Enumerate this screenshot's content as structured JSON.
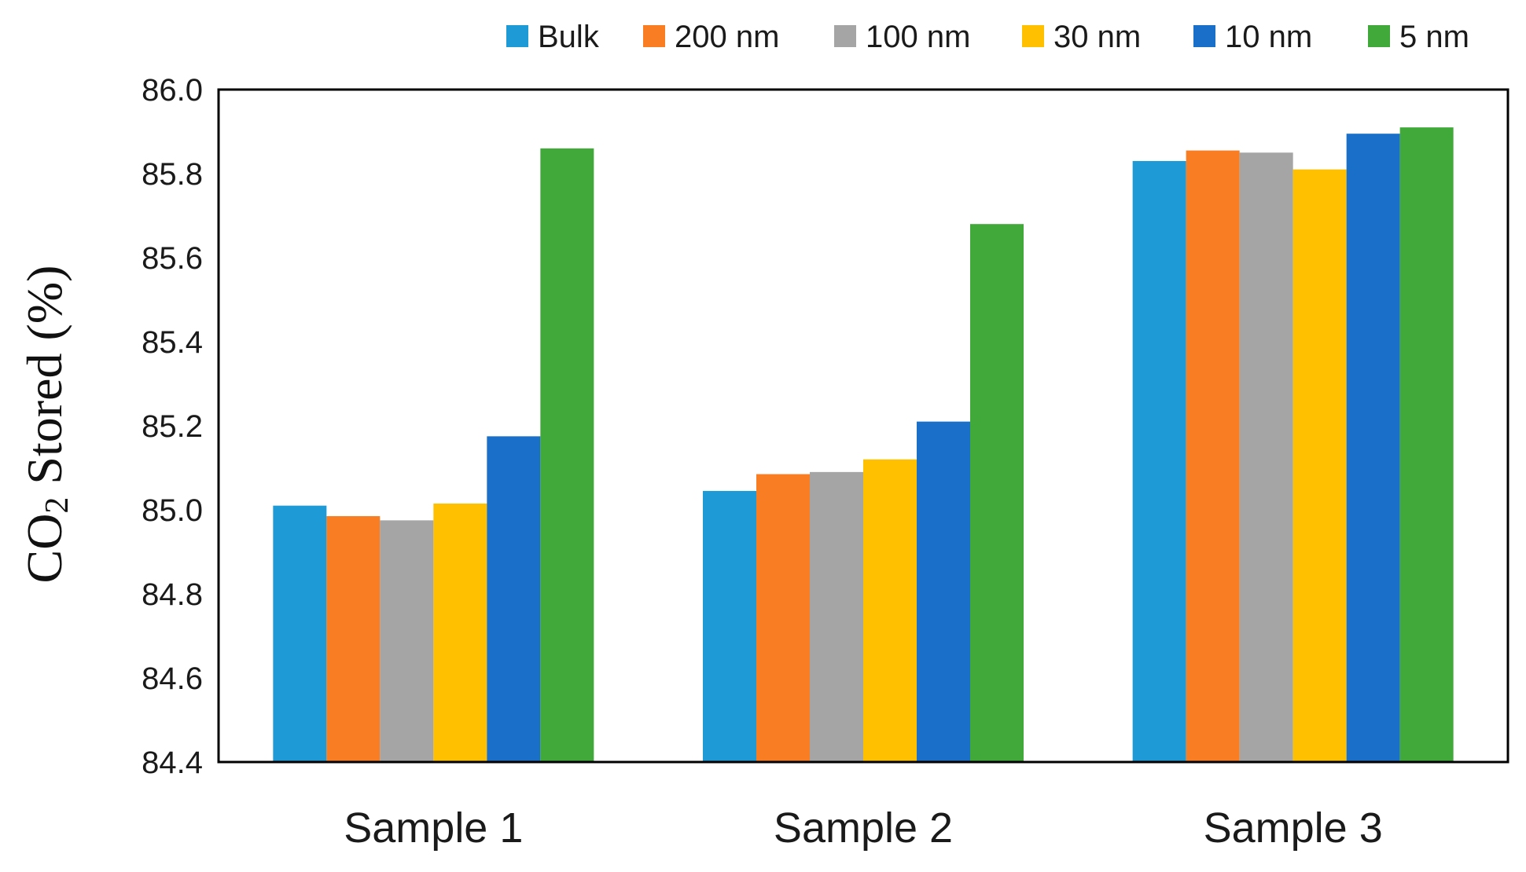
{
  "chart_data": {
    "type": "bar",
    "title": "",
    "xlabel": "",
    "ylabel": "CO",
    "ylabel_sub": "2",
    "ylabel_rest": " Stored (%)",
    "ylim": [
      84.4,
      86.0
    ],
    "yticks": [
      "84.4",
      "84.6",
      "84.8",
      "85.0",
      "85.2",
      "85.4",
      "85.6",
      "85.8",
      "86.0"
    ],
    "ytick_values": [
      84.4,
      84.6,
      84.8,
      85.0,
      85.2,
      85.4,
      85.6,
      85.8,
      86.0
    ],
    "grid": false,
    "legend_position": "top",
    "categories": [
      "Sample 1",
      "Sample 2",
      "Sample 3"
    ],
    "series": [
      {
        "name": "Bulk",
        "color": "#1e9ad6",
        "values": [
          85.01,
          85.045,
          85.83
        ]
      },
      {
        "name": "200 nm",
        "color": "#f97d23",
        "values": [
          84.985,
          85.085,
          85.855
        ]
      },
      {
        "name": "100 nm",
        "color": "#a5a5a5",
        "values": [
          84.975,
          85.09,
          85.85
        ]
      },
      {
        "name": "30 nm",
        "color": "#ffc000",
        "values": [
          85.015,
          85.12,
          85.81
        ]
      },
      {
        "name": "10 nm",
        "color": "#1a6fc8",
        "values": [
          85.175,
          85.21,
          85.895
        ]
      },
      {
        "name": "5 nm",
        "color": "#41a93a",
        "values": [
          85.86,
          85.68,
          85.91
        ]
      }
    ]
  }
}
